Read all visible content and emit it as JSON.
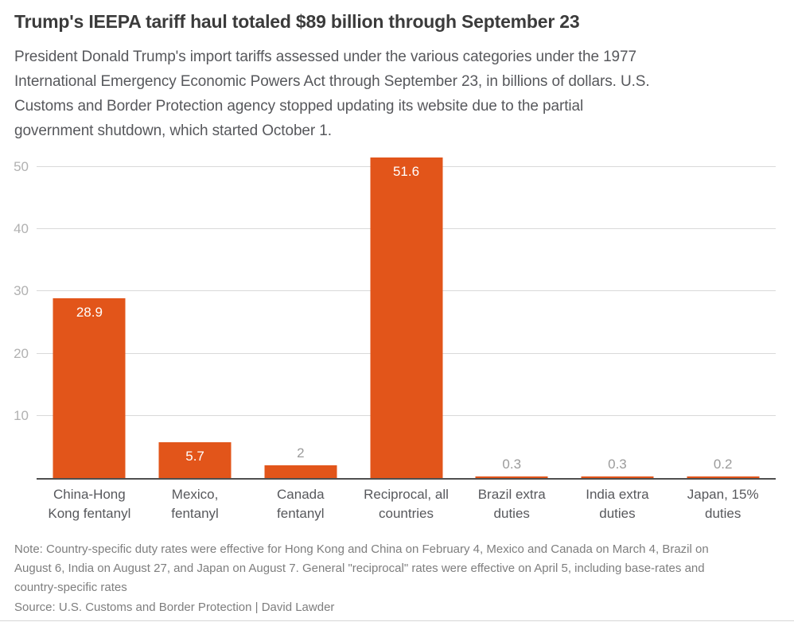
{
  "colors": {
    "bar": "#E2551A",
    "gridline": "#D9D9D9",
    "axis_line": "#4F4F4F",
    "tick_label": "#B1B1B1",
    "value_label_outside": "#9B9B9B",
    "value_label_inside": "#FFFFFF",
    "title": "#3B3B3B",
    "subtitle": "#57585C",
    "category_label": "#57585C",
    "footnote": "#7E7E7E",
    "bottom_rule": "#D6D6D6"
  },
  "chart_data": {
    "type": "bar",
    "title": "Trump's IEEPA tariff haul totaled $89 billion through September 23",
    "subtitle": "President Donald Trump's import tariffs assessed under the various categories under the 1977\nInternational Emergency Economic Powers Act through September 23, in billions of dollars. U.S.\nCustoms and Border Protection agency stopped updating its website due to the partial\ngovernment shutdown, which started October 1.",
    "categories": [
      "China-Hong\nKong fentanyl",
      "Mexico,\nfentanyl",
      "Canada\nfentanyl",
      "Reciprocal, all\ncountries",
      "Brazil extra\nduties",
      "India extra\nduties",
      "Japan, 15%\nduties"
    ],
    "values": [
      28.9,
      5.7,
      2,
      51.6,
      0.3,
      0.3,
      0.2
    ],
    "value_labels": [
      "28.9",
      "5.7",
      "2",
      "51.6",
      "0.3",
      "0.3",
      "0.2"
    ],
    "yticks": [
      10,
      20,
      30,
      40,
      50
    ],
    "ylim": [
      0,
      51.8
    ],
    "xlabel": "",
    "ylabel": "",
    "grid": true,
    "legend": false,
    "note": "Note: Country-specific duty rates were effective for Hong Kong and China on February 4, Mexico and Canada on March 4, Brazil on\nAugust 6, India on August 27, and Japan on August 7. General \"reciprocal\" rates were effective on April 5, including base-rates and\ncountry-specific rates",
    "source": "Source: U.S. Customs and Border Protection | David Lawder"
  }
}
